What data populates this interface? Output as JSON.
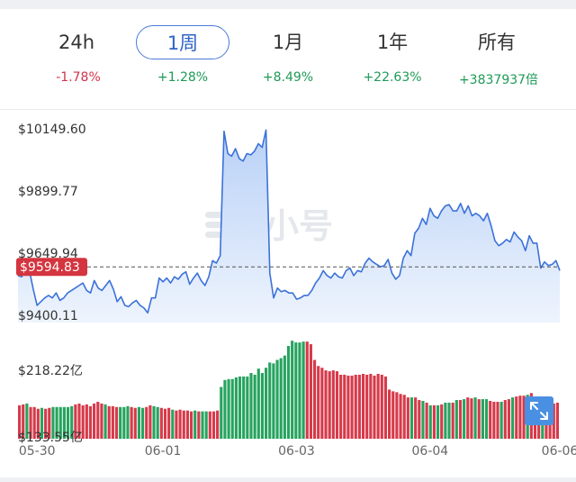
{
  "tabs": [
    {
      "label": "24h",
      "change": "-1.78%",
      "dir": "neg",
      "active": false
    },
    {
      "label": "1周",
      "change": "+1.28%",
      "dir": "pos",
      "active": true
    },
    {
      "label": "1月",
      "change": "+8.49%",
      "dir": "pos",
      "active": false
    },
    {
      "label": "1年",
      "change": "+22.63%",
      "dir": "pos",
      "active": false
    },
    {
      "label": "所有",
      "change": "+3837937倍",
      "dir": "pos",
      "active": false
    }
  ],
  "watermark": "非小号",
  "colors": {
    "line": "#3b72d9",
    "area_top": "#b9d1f7",
    "area_bottom": "#eef4fd",
    "current_badge": "#d4353f",
    "volume_up": "#27a35f",
    "volume_down": "#d63a4a",
    "expand_button": "#4a90e2"
  },
  "expand_icon": "expand-arrows-icon",
  "chart_data": [
    {
      "type": "line",
      "title": "",
      "ylabel": "",
      "y_tick_labels": [
        "$10149.60",
        "$9899.77",
        "$9649.94",
        "$9400.11"
      ],
      "y_ticks": [
        10149.6,
        9899.77,
        9649.94,
        9400.11
      ],
      "ylim": [
        9400.11,
        10149.6
      ],
      "x_tick_labels": [
        "05-30",
        "06-01",
        "06-03",
        "06-04",
        "06-06"
      ],
      "x_tick_index": [
        5,
        38,
        73,
        108,
        142
      ],
      "current_price": 9594.83,
      "current_price_label": "$9594.83",
      "fill": "area",
      "grid": false,
      "values": [
        9560,
        9555,
        9600,
        9580,
        9505,
        9440,
        9455,
        9470,
        9480,
        9470,
        9490,
        9460,
        9470,
        9490,
        9500,
        9510,
        9520,
        9530,
        9500,
        9490,
        9540,
        9510,
        9500,
        9520,
        9540,
        9505,
        9455,
        9475,
        9440,
        9435,
        9450,
        9460,
        9440,
        9430,
        9410,
        9470,
        9470,
        9550,
        9535,
        9550,
        9530,
        9555,
        9545,
        9565,
        9575,
        9525,
        9550,
        9570,
        9540,
        9520,
        9555,
        9620,
        9610,
        9640,
        10140,
        10050,
        10040,
        10070,
        10030,
        10020,
        10050,
        10045,
        10060,
        10090,
        10075,
        10145,
        9570,
        9470,
        9510,
        9495,
        9500,
        9490,
        9490,
        9465,
        9470,
        9480,
        9480,
        9500,
        9530,
        9550,
        9580,
        9560,
        9550,
        9570,
        9555,
        9550,
        9580,
        9590,
        9560,
        9580,
        9575,
        9610,
        9630,
        9615,
        9605,
        9595,
        9600,
        9625,
        9570,
        9545,
        9560,
        9630,
        9660,
        9640,
        9730,
        9750,
        9790,
        9765,
        9830,
        9800,
        9790,
        9820,
        9840,
        9845,
        9820,
        9820,
        9850,
        9810,
        9840,
        9800,
        9810,
        9800,
        9780,
        9810,
        9760,
        9700,
        9680,
        9690,
        9705,
        9695,
        9735,
        9715,
        9700,
        9660,
        9720,
        9690,
        9690,
        9590,
        9615,
        9600,
        9605,
        9620,
        9580
      ]
    },
    {
      "type": "bar",
      "title": "",
      "y_tick_labels": [
        "$218.22亿",
        "$133.55亿"
      ],
      "y_ticks": [
        218.22,
        133.55
      ],
      "x_tick_labels": [
        "05-30",
        "06-01",
        "06-03",
        "06-04",
        "06-06"
      ],
      "values": [
        143,
        144,
        145,
        141,
        141,
        139,
        140,
        139,
        140,
        141,
        141,
        141,
        141,
        141,
        142,
        144,
        145,
        143,
        144,
        142,
        145,
        147,
        145,
        144,
        142,
        142,
        141,
        141,
        141,
        142,
        141,
        140,
        141,
        140,
        141,
        143,
        142,
        141,
        140,
        139,
        140,
        138,
        137,
        138,
        137,
        137,
        136,
        137,
        136,
        136,
        136,
        136,
        136,
        137,
        164,
        172,
        173,
        173,
        175,
        176,
        176,
        176,
        180,
        178,
        185,
        180,
        186,
        192,
        191,
        195,
        197,
        200,
        211,
        217,
        215,
        215,
        216,
        216,
        213,
        195,
        188,
        186,
        183,
        182,
        183,
        182,
        178,
        178,
        177,
        177,
        178,
        178,
        179,
        178,
        179,
        177,
        179,
        178,
        176,
        161,
        159,
        158,
        156,
        155,
        152,
        152,
        152,
        149,
        148,
        146,
        143,
        143,
        143,
        144,
        146,
        146,
        146,
        149,
        149,
        150,
        152,
        151,
        152,
        150,
        150,
        150,
        148,
        147,
        147,
        147,
        149,
        150,
        152,
        153,
        154,
        154,
        155,
        157,
        151,
        150,
        148,
        147,
        147,
        145,
        146
      ],
      "directions": "ddudddudduuuuuudddddddduddduuudduudduuddduddddduduuddduuuuuuuuuuuuuuuuuuuuuuudddddddddddddddddddddddddddduddudududuudududduduuddduddudddudddudddddudddduuu"
    }
  ]
}
